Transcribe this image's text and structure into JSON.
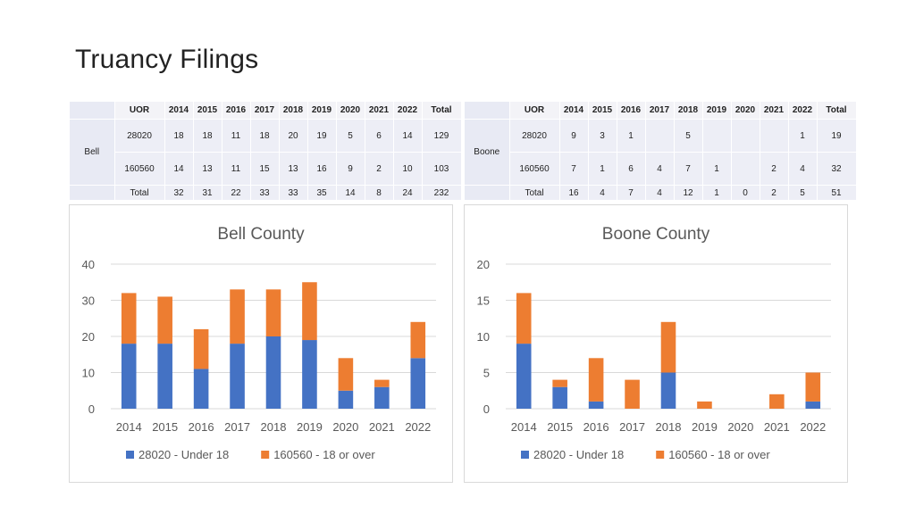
{
  "page": {
    "title": "Truancy Filings"
  },
  "tables": [
    {
      "county": "Bell",
      "headers": [
        "UOR",
        "2014",
        "2015",
        "2016",
        "2017",
        "2018",
        "2019",
        "2020",
        "2021",
        "2022",
        "Total"
      ],
      "rows": [
        [
          "28020",
          "18",
          "18",
          "11",
          "18",
          "20",
          "19",
          "5",
          "6",
          "14",
          "129"
        ],
        [
          "160560",
          "14",
          "13",
          "11",
          "15",
          "13",
          "16",
          "9",
          "2",
          "10",
          "103"
        ],
        [
          "Total",
          "32",
          "31",
          "22",
          "33",
          "33",
          "35",
          "14",
          "8",
          "24",
          "232"
        ]
      ]
    },
    {
      "county": "Boone",
      "headers": [
        "UOR",
        "2014",
        "2015",
        "2016",
        "2017",
        "2018",
        "2019",
        "2020",
        "2021",
        "2022",
        "Total"
      ],
      "rows": [
        [
          "28020",
          "9",
          "3",
          "1",
          "",
          "5",
          "",
          "",
          "",
          "1",
          "19"
        ],
        [
          "160560",
          "7",
          "1",
          "6",
          "4",
          "7",
          "1",
          "",
          "2",
          "4",
          "32"
        ],
        [
          "Total",
          "16",
          "4",
          "7",
          "4",
          "12",
          "1",
          "0",
          "2",
          "5",
          "51"
        ]
      ]
    }
  ],
  "chart_data": [
    {
      "type": "bar",
      "stacked": true,
      "title": "Bell County",
      "categories": [
        "2014",
        "2015",
        "2016",
        "2017",
        "2018",
        "2019",
        "2020",
        "2021",
        "2022"
      ],
      "series": [
        {
          "name": "28020 - Under 18",
          "color": "#4472c4",
          "values": [
            18,
            18,
            11,
            18,
            20,
            19,
            5,
            6,
            14
          ]
        },
        {
          "name": "160560 - 18 or over",
          "color": "#ed7d31",
          "values": [
            14,
            13,
            11,
            15,
            13,
            16,
            9,
            2,
            10
          ]
        }
      ],
      "ylim": [
        0,
        40
      ],
      "yticks": [
        "0",
        "10",
        "20",
        "30",
        "40"
      ],
      "grid": true,
      "legend": "bottom"
    },
    {
      "type": "bar",
      "stacked": true,
      "title": "Boone County",
      "categories": [
        "2014",
        "2015",
        "2016",
        "2017",
        "2018",
        "2019",
        "2020",
        "2021",
        "2022"
      ],
      "series": [
        {
          "name": "28020 - Under 18",
          "color": "#4472c4",
          "values": [
            9,
            3,
            1,
            0,
            5,
            0,
            0,
            0,
            1
          ]
        },
        {
          "name": "160560 - 18 or over",
          "color": "#ed7d31",
          "values": [
            7,
            1,
            6,
            4,
            7,
            1,
            0,
            2,
            4
          ]
        }
      ],
      "ylim": [
        0,
        20
      ],
      "yticks": [
        "0",
        "5",
        "10",
        "15",
        "20"
      ],
      "grid": true,
      "legend": "bottom"
    }
  ]
}
